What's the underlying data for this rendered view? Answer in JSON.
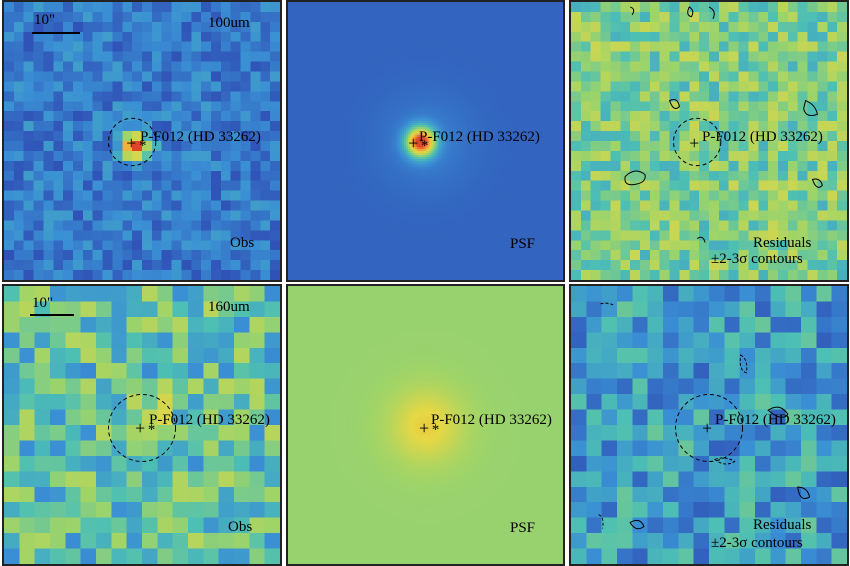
{
  "source_label": "P-F012 (HD 33262)",
  "residual_label": "Residuals",
  "contour_label": "±2-3σ contours",
  "rows": [
    {
      "band": "100um",
      "scale_label": "10\"",
      "panels": [
        {
          "kind": "obs",
          "label": "Obs"
        },
        {
          "kind": "psf",
          "label": "PSF"
        },
        {
          "kind": "res",
          "label": "Residuals"
        }
      ]
    },
    {
      "band": "160um",
      "scale_label": "10\"",
      "panels": [
        {
          "kind": "obs",
          "label": "Obs"
        },
        {
          "kind": "psf",
          "label": "PSF"
        },
        {
          "kind": "res",
          "label": "Residuals"
        }
      ]
    }
  ],
  "colormap": [
    "#3b1e8a",
    "#2f4fb5",
    "#3a8fd4",
    "#4dbfb4",
    "#9fd468",
    "#e6d744",
    "#f2a33a",
    "#e0452a"
  ]
}
